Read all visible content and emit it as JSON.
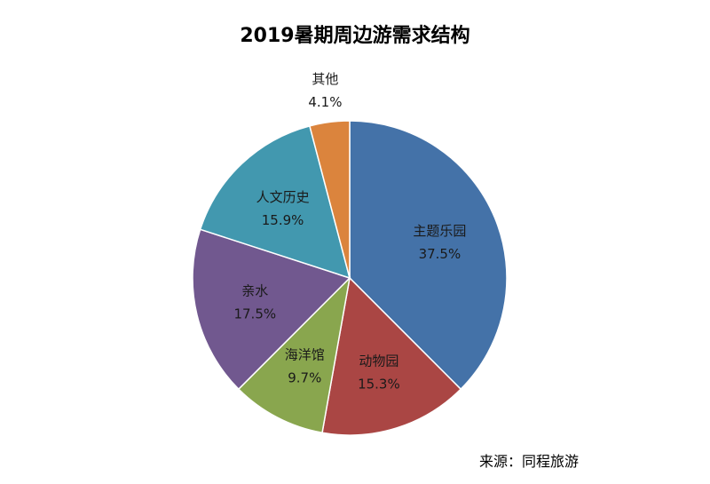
{
  "chart_data": {
    "type": "pie",
    "title": "2019暑期周边游需求结构",
    "slices": [
      {
        "label": "主题乐园",
        "value": 37.5,
        "value_label": "37.5%",
        "color": "#4472a8"
      },
      {
        "label": "动物园",
        "value": 15.3,
        "value_label": "15.3%",
        "color": "#aa4644"
      },
      {
        "label": "海洋馆",
        "value": 9.7,
        "value_label": "9.7%",
        "color": "#89a64e"
      },
      {
        "label": "亲水",
        "value": 17.5,
        "value_label": "17.5%",
        "color": "#71588f"
      },
      {
        "label": "人文历史",
        "value": 15.9,
        "value_label": "15.9%",
        "color": "#4298af"
      },
      {
        "label": "其他",
        "value": 4.1,
        "value_label": "4.1%",
        "color": "#db843d"
      }
    ],
    "start_angle": "12 o'clock",
    "direction": "clockwise",
    "legend": "none"
  },
  "source_note": "来源：同程旅游"
}
